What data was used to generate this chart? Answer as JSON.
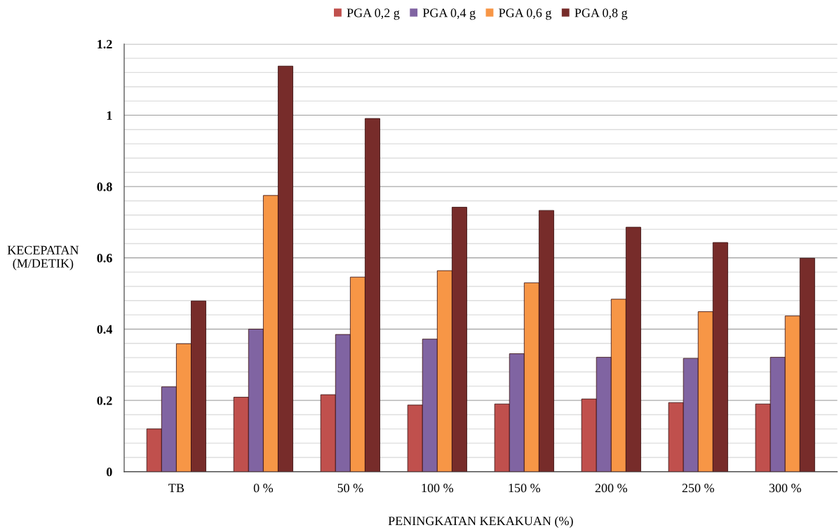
{
  "chart_data": {
    "type": "bar",
    "categories": [
      "TB",
      "0 %",
      "50 %",
      "100 %",
      "150 %",
      "200 %",
      "250 %",
      "300 %"
    ],
    "series": [
      {
        "name": "PGA 0,2 g",
        "color": "#c0504d",
        "values": [
          0.12,
          0.209,
          0.216,
          0.187,
          0.19,
          0.204,
          0.194,
          0.19
        ]
      },
      {
        "name": "PGA 0,4 g",
        "color": "#8064a2",
        "values": [
          0.238,
          0.4,
          0.385,
          0.372,
          0.331,
          0.321,
          0.318,
          0.321
        ]
      },
      {
        "name": "PGA 0,6 g",
        "color": "#f79646",
        "values": [
          0.359,
          0.775,
          0.546,
          0.564,
          0.53,
          0.484,
          0.449,
          0.437
        ]
      },
      {
        "name": "PGA 0,8 g",
        "color": "#772c2a",
        "values": [
          0.479,
          1.138,
          0.991,
          0.742,
          0.733,
          0.686,
          0.643,
          0.599
        ]
      }
    ],
    "xlabel": "PENINGKATAN KEKAKUAN (%)",
    "ylabel": "KECEPATAN\n(M/DETIK)",
    "ylim": [
      0,
      1.2
    ],
    "yticks": [
      0,
      {
        "value": 0.04,
        "label": null
      },
      {
        "value": 0.08,
        "label": null
      },
      {
        "value": 0.12,
        "label": null
      },
      {
        "value": 0.16,
        "label": null
      },
      0.2,
      {
        "value": 0.24,
        "label": null
      },
      {
        "value": 0.28,
        "label": null
      },
      {
        "value": 0.32,
        "label": null
      },
      {
        "value": 0.36,
        "label": null
      },
      0.4,
      {
        "value": 0.44,
        "label": null
      },
      {
        "value": 0.48,
        "label": null
      },
      {
        "value": 0.52,
        "label": null
      },
      {
        "value": 0.56,
        "label": null
      },
      0.6,
      {
        "value": 0.64,
        "label": null
      },
      {
        "value": 0.68,
        "label": null
      },
      {
        "value": 0.72,
        "label": null
      },
      {
        "value": 0.76,
        "label": null
      },
      0.8,
      {
        "value": 0.84,
        "label": null
      },
      {
        "value": 0.88,
        "label": null
      },
      {
        "value": 0.92,
        "label": null
      },
      {
        "value": 0.96,
        "label": null
      },
      1,
      {
        "value": 1.04,
        "label": null
      },
      {
        "value": 1.08,
        "label": null
      },
      {
        "value": 1.12,
        "label": null
      },
      {
        "value": 1.16,
        "label": null
      },
      1.2
    ],
    "grid": "y",
    "legend": "top"
  }
}
